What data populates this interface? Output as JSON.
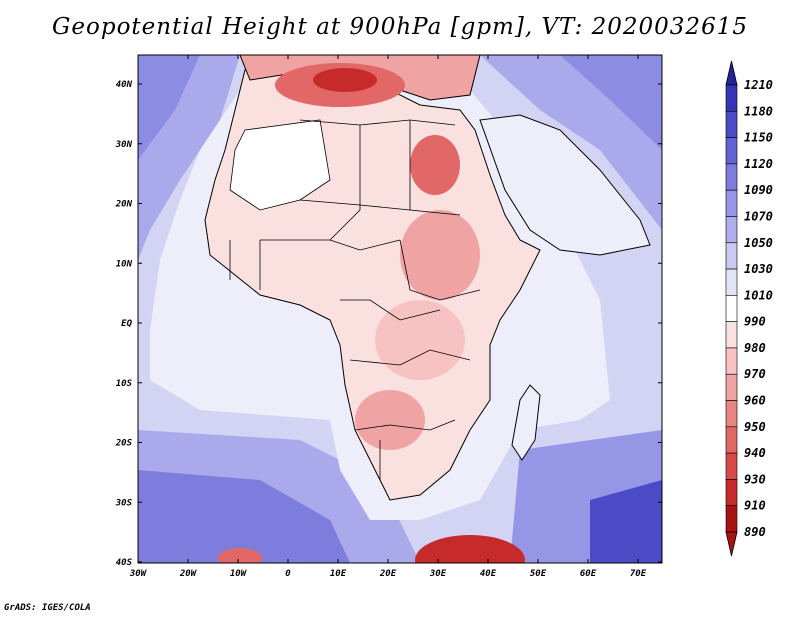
{
  "title": "Geopotential Height at 900hPa [gpm], VT: 2020032615",
  "footer": "GrADS: IGES/COLA",
  "lat_labels": [
    "40N",
    "30N",
    "20N",
    "10N",
    "EQ",
    "10S",
    "20S",
    "30S",
    "40S"
  ],
  "lon_labels": [
    "30W",
    "20W",
    "10W",
    "0",
    "10E",
    "20E",
    "30E",
    "40E",
    "50E",
    "60E",
    "70E"
  ],
  "colorbar": {
    "levels": [
      "1210",
      "1180",
      "1150",
      "1120",
      "1090",
      "1070",
      "1050",
      "1030",
      "1010",
      "990",
      "980",
      "970",
      "960",
      "950",
      "940",
      "930",
      "910",
      "890"
    ],
    "colors": [
      "#24249a",
      "#3636b4",
      "#4b4bc6",
      "#6363d3",
      "#7d7dde",
      "#9696e6",
      "#afafec",
      "#c9c9f2",
      "#e3e3f8",
      "#ffffff",
      "#fbe0e0",
      "#f6c2c2",
      "#f0a3a3",
      "#e98585",
      "#e26767",
      "#d84a4a",
      "#c62a2a",
      "#a81414"
    ]
  },
  "colors": {
    "ocean": "#c9c9f2",
    "land_low": "#f6c2c2",
    "land_high": "#a81414",
    "border": "#000000"
  }
}
